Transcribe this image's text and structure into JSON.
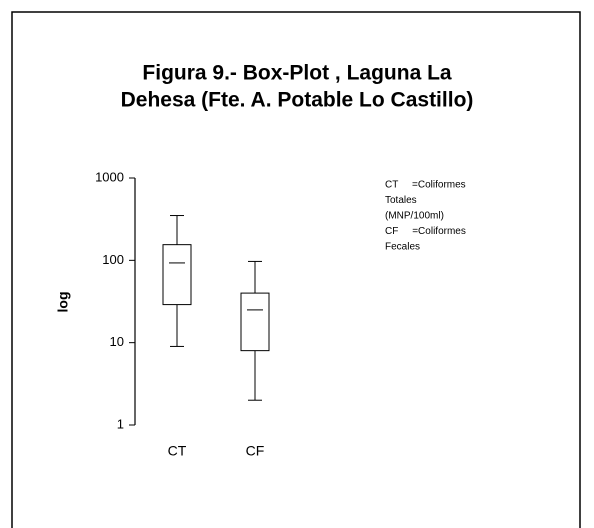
{
  "chart_data": {
    "type": "box",
    "title_lines": [
      "Figura 9.- Box-Plot , Laguna La",
      "Dehesa (Fte. A. Potable Lo Castillo)"
    ],
    "ylabel": "log",
    "categories": [
      "CT",
      "CF"
    ],
    "boxes": [
      {
        "min": 9,
        "q1": 29,
        "median": 93,
        "q3": 155,
        "max": 350
      },
      {
        "min": 2,
        "q1": 8,
        "median": 25,
        "q3": 40,
        "max": 97
      }
    ],
    "ylim": [
      1,
      1000
    ],
    "yticks": [
      1,
      10,
      100,
      1000
    ],
    "log_scale": true,
    "color": "#000000",
    "legend_lines": [
      "CT     =Coliformes",
      "Totales",
      "(MNP/100ml)",
      "CF     =Coliformes",
      "Fecales"
    ]
  }
}
